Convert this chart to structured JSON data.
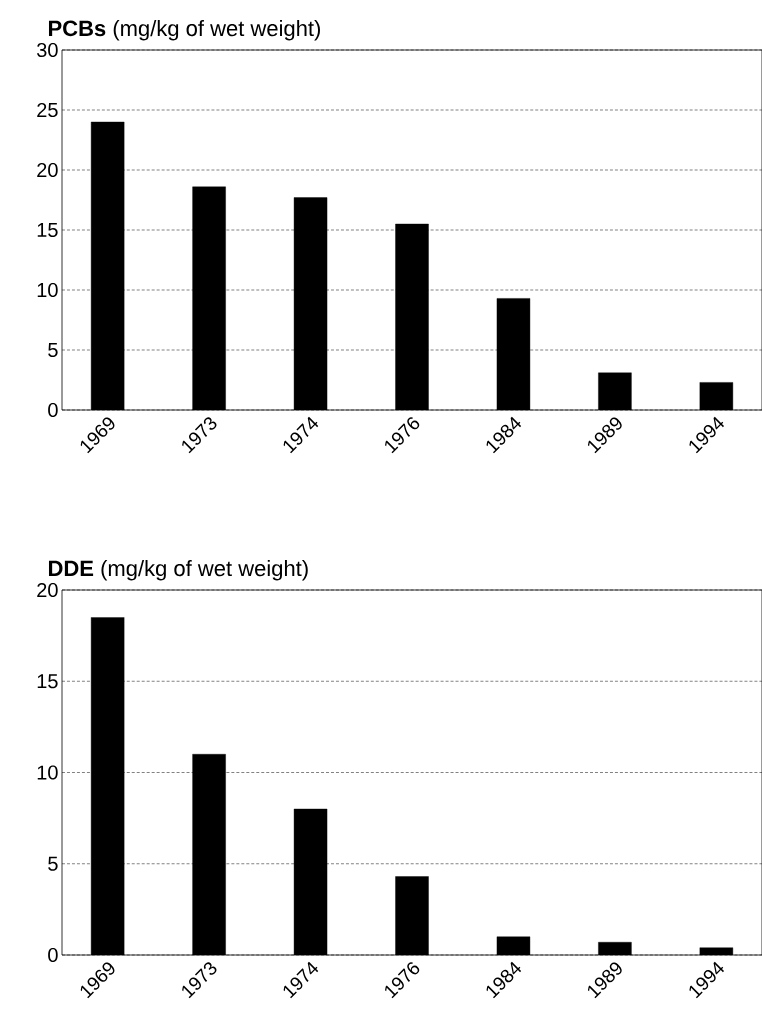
{
  "chart_data": [
    {
      "type": "bar",
      "title": "**PCBs** (mg/kg of wet weight)",
      "categories": [
        "1969",
        "1973",
        "1974",
        "1976",
        "1984",
        "1989",
        "1994"
      ],
      "values": [
        24,
        18.6,
        17.7,
        15.5,
        9.3,
        3.1,
        2.3
      ],
      "color": "#000000",
      "ylim": [
        0,
        30
      ],
      "yticks": [
        0,
        5,
        10,
        15,
        20,
        25,
        30
      ],
      "grid": "y"
    },
    {
      "type": "bar",
      "title": "**DDE** (mg/kg of wet weight)",
      "categories": [
        "1969",
        "1973",
        "1974",
        "1976",
        "1984",
        "1989",
        "1994"
      ],
      "values": [
        18.5,
        11.0,
        8.0,
        4.3,
        1.0,
        0.7,
        0.4
      ],
      "color": "#000000",
      "ylim": [
        0,
        20
      ],
      "yticks": [
        0,
        5,
        10,
        15,
        20
      ],
      "grid": "y"
    }
  ]
}
